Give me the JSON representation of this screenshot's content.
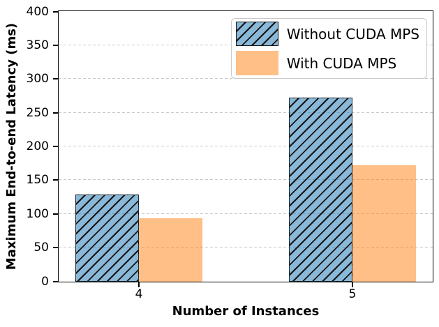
{
  "chart_data": {
    "type": "bar",
    "title": "",
    "xlabel": "Number of Instances",
    "ylabel": "Maximum End-to-end Latency (ms)",
    "categories": [
      "4",
      "5"
    ],
    "series": [
      {
        "name": "Without CUDA MPS",
        "values": [
          129,
          273
        ],
        "color": "#1f77b4",
        "fill_css": "rgba(31,119,180,0.52)",
        "hatch": "/"
      },
      {
        "name": "With CUDA MPS",
        "values": [
          94,
          173
        ],
        "color": "#ff7f0e",
        "fill_css": "rgba(255,127,14,0.50)",
        "hatch": null
      }
    ],
    "ylim": [
      0,
      400
    ],
    "ytick_step": 50,
    "yticks": [
      0,
      50,
      100,
      150,
      200,
      250,
      300,
      350,
      400
    ],
    "grid": {
      "axis": "y",
      "style": "dashed",
      "color": "#c9c9c9"
    },
    "legend": {
      "position": "upper right",
      "entries": [
        "Without CUDA MPS",
        "With CUDA MPS"
      ]
    }
  }
}
